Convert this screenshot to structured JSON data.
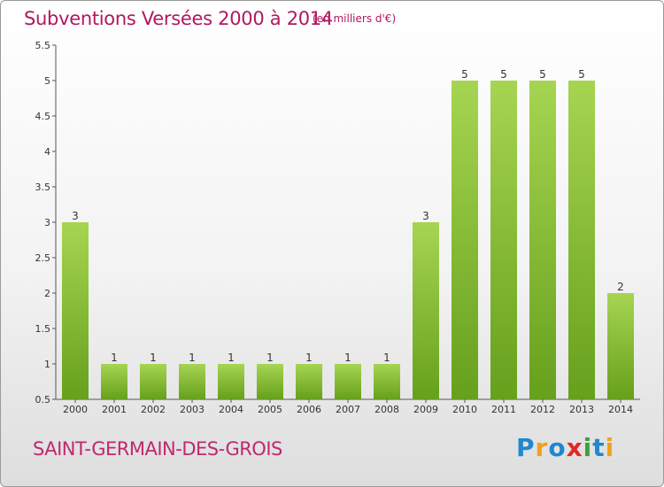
{
  "title": "Subventions Versées 2000 à 2014",
  "unit_note": "(en milliers d'€)",
  "commune": "SAINT-GERMAIN-DES-GROIS",
  "logo": {
    "text": "Proxiti",
    "letters": [
      {
        "ch": "P",
        "color": "#1e88d0"
      },
      {
        "ch": "r",
        "color": "#f0a020"
      },
      {
        "ch": "o",
        "color": "#1e88d0"
      },
      {
        "ch": "x",
        "color": "#e02828"
      },
      {
        "ch": "i",
        "color": "#40a040"
      },
      {
        "ch": "t",
        "color": "#1e88d0"
      },
      {
        "ch": "i",
        "color": "#f0a020"
      }
    ]
  },
  "chart_data": {
    "type": "bar",
    "categories": [
      "2000",
      "2001",
      "2002",
      "2003",
      "2004",
      "2005",
      "2006",
      "2007",
      "2008",
      "2009",
      "2010",
      "2011",
      "2012",
      "2013",
      "2014"
    ],
    "values": [
      3,
      1,
      1,
      1,
      1,
      1,
      1,
      1,
      1,
      3,
      5,
      5,
      5,
      5,
      2
    ],
    "data_labels": [
      "3",
      "1",
      "1",
      "1",
      "1",
      "1",
      "1",
      "1",
      "1",
      "3",
      "5",
      "5",
      "5",
      "5",
      "2"
    ],
    "ylim": [
      0.5,
      5.5
    ],
    "yticks": [
      0.5,
      1,
      1.5,
      2,
      2.5,
      3,
      3.5,
      4,
      4.5,
      5,
      5.5
    ],
    "ytick_labels": [
      "0.5",
      "1",
      "1.5",
      "2",
      "2.5",
      "3",
      "3.5",
      "4",
      "4.5",
      "5",
      "5.5"
    ],
    "grid": false,
    "xlabel": "",
    "ylabel": "",
    "bar_color_top": "#a6d552",
    "bar_color_bottom": "#66a01c"
  }
}
